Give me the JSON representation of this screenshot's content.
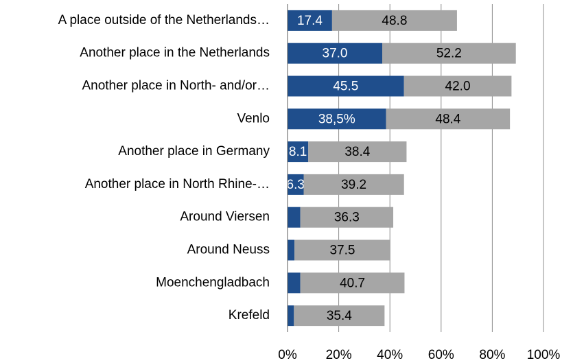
{
  "chart_data": {
    "type": "stacked_bar_horizontal",
    "categories": [
      "A place outside of the Netherlands…",
      "Another place in the Netherlands",
      "Another place in North- and/or…",
      "Venlo",
      "Another place in Germany",
      "Another place in North Rhine-…",
      "Around Viersen",
      "Around Neuss",
      "Moenchengladbach",
      "Krefeld"
    ],
    "series": [
      {
        "color": "#1f4e8c",
        "values": [
          17.4,
          37.0,
          45.5,
          38.5,
          8.1,
          6.3,
          5.0,
          2.7,
          5.0,
          2.5
        ],
        "value_labels": [
          "17.4",
          "37.0",
          "45.5",
          "38,5%",
          "8.1",
          "6.3",
          null,
          null,
          null,
          null
        ]
      },
      {
        "color": "#a6a6a6",
        "values": [
          48.8,
          52.2,
          42.0,
          48.4,
          38.4,
          39.2,
          36.3,
          37.5,
          40.7,
          35.4
        ],
        "value_labels": [
          "48.8",
          "52.2",
          "42.0",
          "48.4",
          "38.4",
          "39.2",
          "36.3",
          "37.5",
          "40.7",
          "35.4"
        ]
      }
    ],
    "xlim": [
      0,
      100
    ],
    "xticks": [
      {
        "value": 0,
        "label": "0%"
      },
      {
        "value": 20,
        "label": "20%"
      },
      {
        "value": 40,
        "label": "40%"
      },
      {
        "value": 60,
        "label": "60%"
      },
      {
        "value": 80,
        "label": "80%"
      },
      {
        "value": 100,
        "label": "100%"
      }
    ],
    "grid": true
  }
}
